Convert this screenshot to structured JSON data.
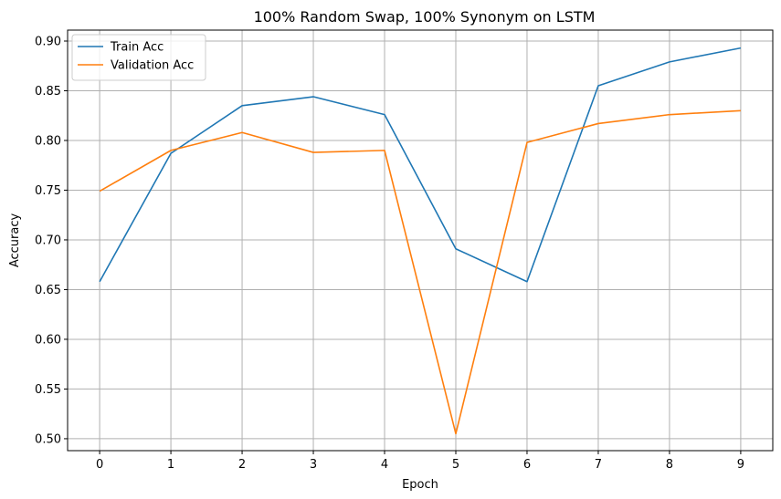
{
  "chart_data": {
    "type": "line",
    "title": "100% Random Swap, 100% Synonym on LSTM",
    "xlabel": "Epoch",
    "ylabel": "Accuracy",
    "x": [
      0,
      1,
      2,
      3,
      4,
      5,
      6,
      7,
      8,
      9
    ],
    "xlim": [
      -0.45,
      9.45
    ],
    "ylim": [
      0.488,
      0.911
    ],
    "yticks": [
      "0.50",
      "0.55",
      "0.60",
      "0.65",
      "0.70",
      "0.75",
      "0.80",
      "0.85",
      "0.90"
    ],
    "xticks": [
      "0",
      "1",
      "2",
      "3",
      "4",
      "5",
      "6",
      "7",
      "8",
      "9"
    ],
    "grid": true,
    "legend_position": "upper-left",
    "series": [
      {
        "name": "Train Acc",
        "color": "#1f77b4",
        "values": [
          0.658,
          0.787,
          0.835,
          0.844,
          0.826,
          0.691,
          0.658,
          0.855,
          0.879,
          0.893
        ]
      },
      {
        "name": "Validation Acc",
        "color": "#ff7f0e",
        "values": [
          0.749,
          0.79,
          0.808,
          0.788,
          0.79,
          0.505,
          0.798,
          0.817,
          0.826,
          0.83
        ]
      }
    ]
  }
}
